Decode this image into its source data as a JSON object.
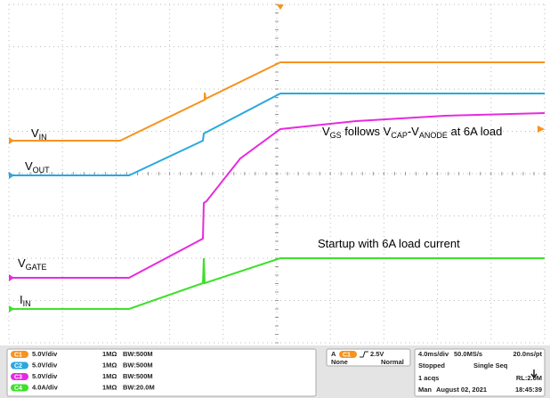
{
  "traces": [
    {
      "label": [
        "V",
        "IN"
      ]
    },
    {
      "label": [
        "V",
        "OUT"
      ]
    },
    {
      "label": [
        "V",
        "GATE"
      ]
    },
    {
      "label": [
        "I",
        "IN"
      ]
    }
  ],
  "annotations": [
    {
      "segments": [
        "V",
        "GS",
        " follows V",
        "CAP",
        "-V",
        "ANODE",
        " at 6A load"
      ]
    },
    {
      "segments": [
        "Startup with 6A load current"
      ]
    }
  ],
  "channels": [
    {
      "id": "C1",
      "scale": "5.0V/div",
      "impedance": "1MΩ",
      "bandwidth": "BW:500M"
    },
    {
      "id": "C2",
      "scale": "5.0V/div",
      "impedance": "1MΩ",
      "bandwidth": "BW:500M"
    },
    {
      "id": "C3",
      "scale": "5.0V/div",
      "impedance": "1MΩ",
      "bandwidth": "BW:500M"
    },
    {
      "id": "C4",
      "scale": "4.0A/div",
      "impedance": "1MΩ",
      "bandwidth": "BW:20.0M"
    }
  ],
  "trigger": {
    "mode": "A",
    "source": "C1",
    "level": "2.5V",
    "coupling": "None",
    "type": "Normal"
  },
  "acquisition": {
    "timebase": "4.0ms/div",
    "sample_rate": "50.0MS/s",
    "resolution": "20.0ns/pt",
    "state": "Stopped",
    "sequence": "Single Seq",
    "acqs": "1 acqs",
    "record_length": "RL:2.0M",
    "trigger_mode": "Man",
    "date": "August 02, 2021",
    "time": "18:45:39"
  }
}
